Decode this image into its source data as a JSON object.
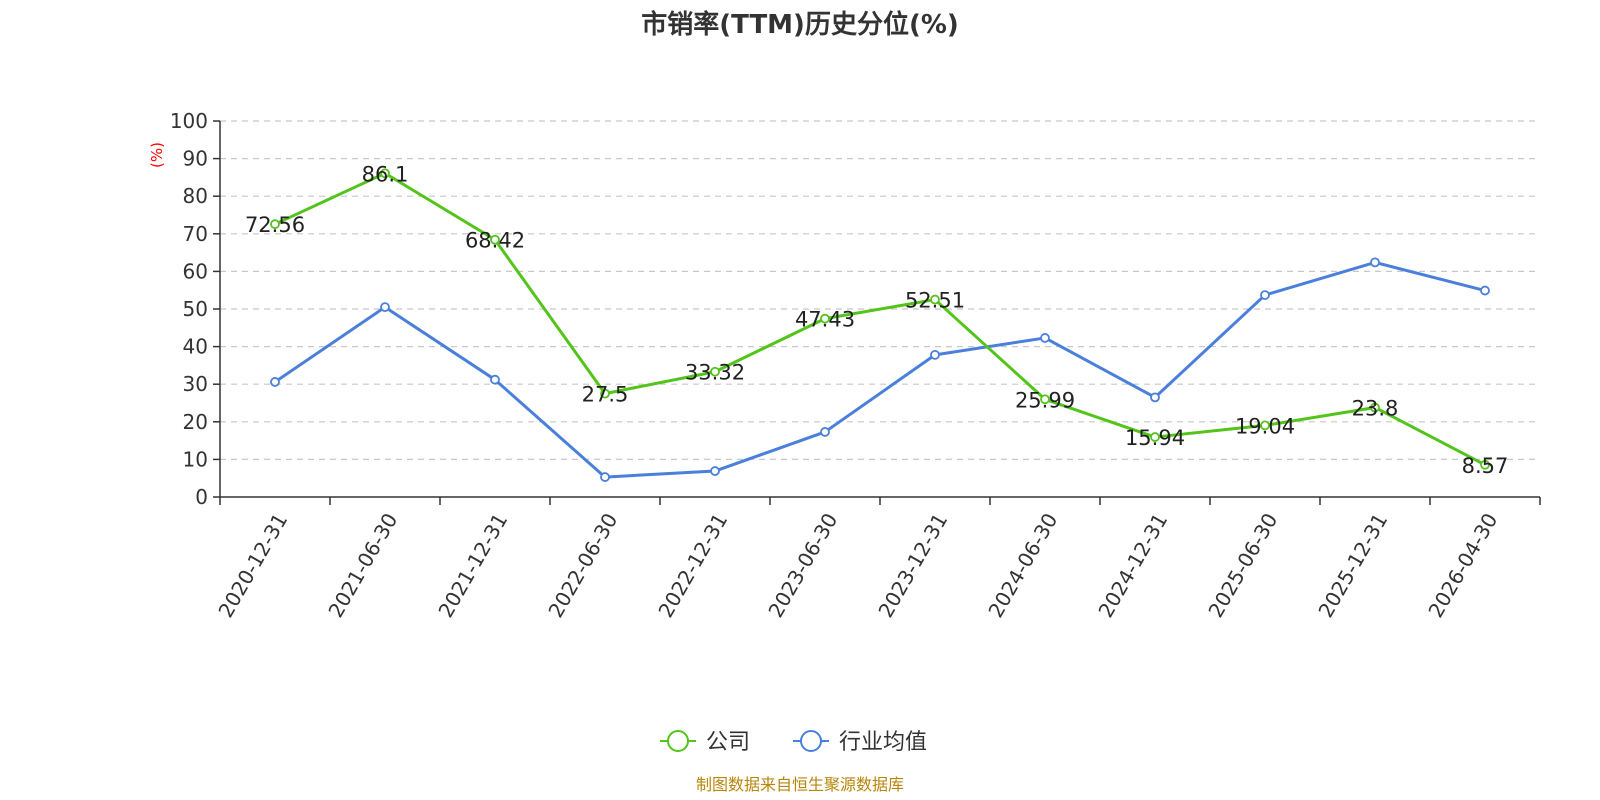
{
  "chart_data": {
    "type": "line",
    "title": "市销率(TTM)历史分位(%)",
    "ylabel": "(%)",
    "ylim": [
      0,
      100
    ],
    "yticks": [
      0,
      10,
      20,
      30,
      40,
      50,
      60,
      70,
      80,
      90,
      100
    ],
    "grid": true,
    "legend_position": "bottom-center",
    "categories": [
      "2020-12-31",
      "2021-06-30",
      "2021-12-31",
      "2022-06-30",
      "2022-12-31",
      "2023-06-30",
      "2023-12-31",
      "2024-06-30",
      "2024-12-31",
      "2025-06-30",
      "2025-12-31",
      "2026-04-30"
    ],
    "series": [
      {
        "name": "公司",
        "color": "#52c41a",
        "show_labels": true,
        "values": [
          72.56,
          86.1,
          68.42,
          27.5,
          33.32,
          47.43,
          52.51,
          25.99,
          15.94,
          19.04,
          23.8,
          8.57
        ],
        "labels": [
          "72.56",
          "86.1",
          "68.42",
          "27.5",
          "33.32",
          "47.43",
          "52.51",
          "25.99",
          "15.94",
          "19.04",
          "23.8",
          "8.57"
        ]
      },
      {
        "name": "行业均值",
        "color": "#4a7fdb",
        "show_labels": false,
        "values": [
          30.6,
          50.5,
          31.2,
          5.3,
          6.9,
          17.3,
          37.8,
          42.3,
          26.5,
          53.7,
          62.4,
          54.9
        ]
      }
    ],
    "source": "制图数据来自恒生聚源数据库",
    "source_color": "#b8860b",
    "ylabel_color": "#ff0000"
  }
}
